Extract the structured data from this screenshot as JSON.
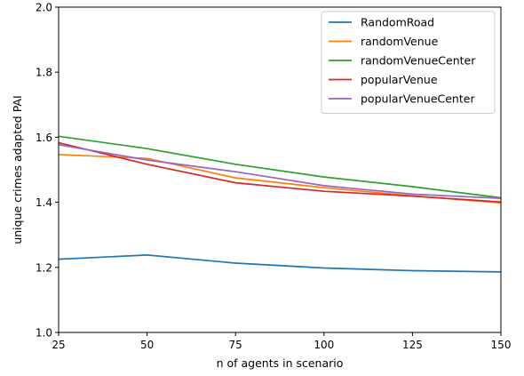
{
  "chart_data": {
    "type": "line",
    "title": "",
    "xlabel": "n of agents in scenario",
    "ylabel": "unique crimes adapted PAI",
    "x": [
      25,
      50,
      75,
      100,
      125,
      150
    ],
    "xlim": [
      25,
      150
    ],
    "ylim": [
      1.0,
      2.0
    ],
    "xticks": [
      "25",
      "50",
      "75",
      "100",
      "125",
      "150"
    ],
    "yticks": [
      "1.0",
      "1.2",
      "1.4",
      "1.6",
      "1.8",
      "2.0"
    ],
    "grid": false,
    "legend_position": "top-right",
    "series": [
      {
        "name": "RandomRoad",
        "color": "#1f77b4",
        "values": [
          1.225,
          1.238,
          1.213,
          1.198,
          1.19,
          1.186
        ]
      },
      {
        "name": "randomVenue",
        "color": "#ff7f0e",
        "values": [
          1.547,
          1.535,
          1.475,
          1.445,
          1.42,
          1.398
        ]
      },
      {
        "name": "randomVenueCenter",
        "color": "#2ca02c",
        "values": [
          1.603,
          1.565,
          1.517,
          1.478,
          1.448,
          1.414
        ]
      },
      {
        "name": "popularVenue",
        "color": "#d62728",
        "values": [
          1.583,
          1.517,
          1.46,
          1.434,
          1.419,
          1.401
        ]
      },
      {
        "name": "popularVenueCenter",
        "color": "#9467bd",
        "values": [
          1.577,
          1.53,
          1.494,
          1.451,
          1.425,
          1.412
        ]
      }
    ]
  }
}
